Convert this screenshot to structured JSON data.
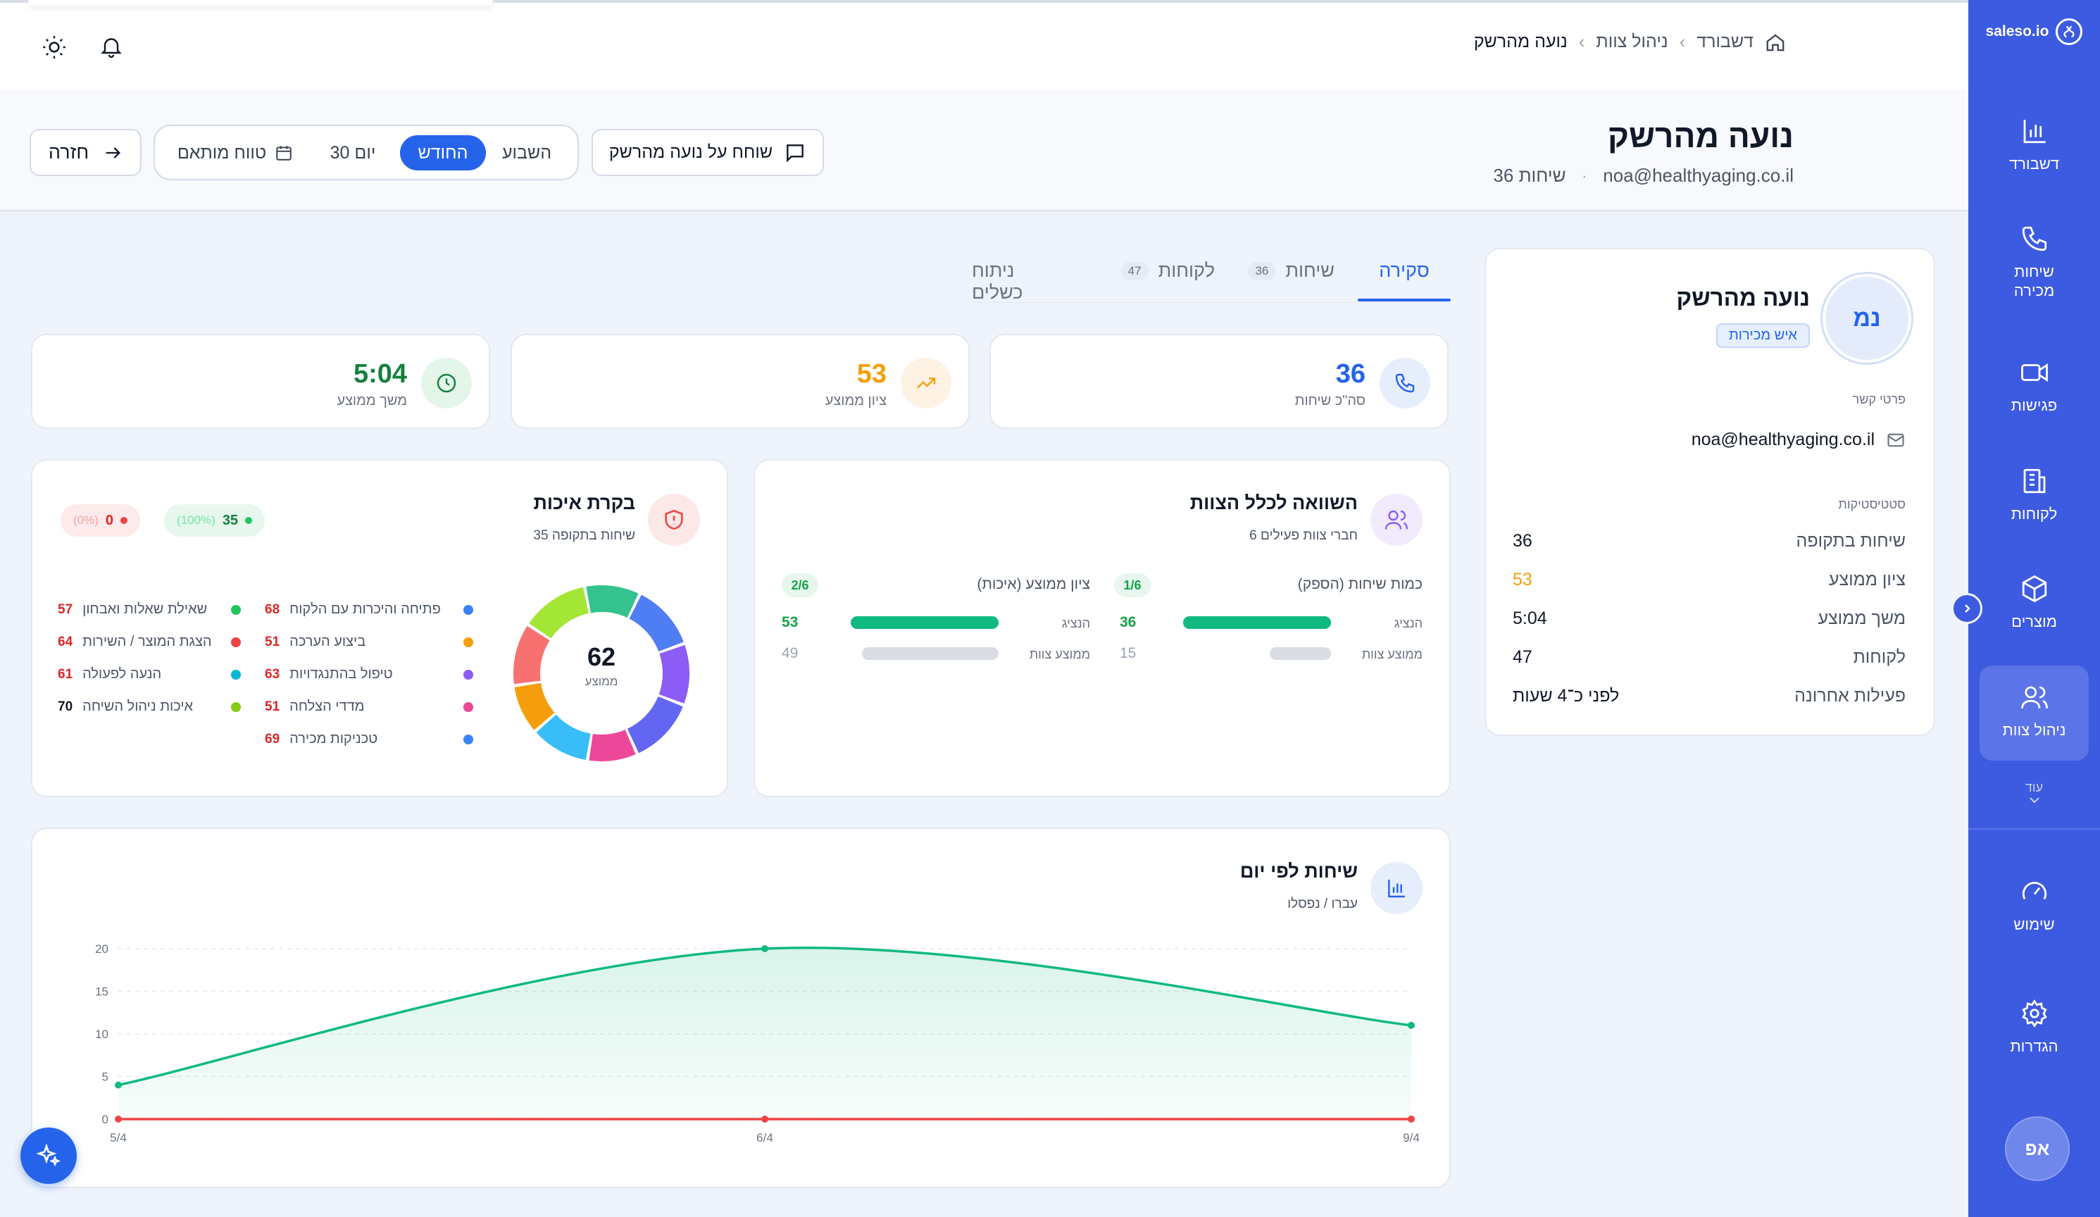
{
  "sidebar": {
    "logo": "saleso.io",
    "items": [
      {
        "label": "דשבורד",
        "icon": "bar-chart-icon"
      },
      {
        "label": "שיחות מכירה",
        "icon": "phone-icon"
      },
      {
        "label": "פגישות",
        "icon": "video-icon"
      },
      {
        "label": "לקוחות",
        "icon": "building-icon"
      },
      {
        "label": "מוצרים",
        "icon": "box-icon"
      },
      {
        "label": "ניהול צוות",
        "icon": "users-icon"
      }
    ],
    "more_label": "עוד",
    "bottom_items": [
      {
        "label": "שימוש",
        "icon": "gauge-icon"
      },
      {
        "label": "הגדרות",
        "icon": "gear-icon"
      }
    ],
    "user_initials": "אפ"
  },
  "breadcrumb": [
    "דשבורד",
    "ניהול צוות",
    "נועה מהרשק"
  ],
  "header": {
    "name": "נועה מהרשק",
    "email": "noa@healthyaging.co.il",
    "calls_count": "36 שיחות",
    "chat_button": "שוחח על נועה מהרשק",
    "periods": [
      "השבוע",
      "החודש",
      "30 יום",
      "טווח מותאם"
    ],
    "active_period": "החודש",
    "back_button": "חזרה"
  },
  "profile": {
    "initials": "נמ",
    "name": "נועה מהרשק",
    "role": "איש מכירות",
    "contact_title": "פרטי קשר",
    "email": "noa@healthyaging.co.il",
    "stats_title": "סטטיסטיקות",
    "stats": [
      {
        "label": "שיחות בתקופה",
        "value": "36",
        "color": "#111827"
      },
      {
        "label": "ציון ממוצע",
        "value": "53",
        "color": "#f59e0b"
      },
      {
        "label": "משך ממוצע",
        "value": "5:04",
        "color": "#111827"
      },
      {
        "label": "לקוחות",
        "value": "47",
        "color": "#111827"
      },
      {
        "label": "פעילות אחרונה",
        "value": "לפני כ־4 שעות",
        "color": "#111827"
      }
    ]
  },
  "tabs": [
    {
      "label": "סקירה",
      "badge": ""
    },
    {
      "label": "שיחות",
      "badge": "36"
    },
    {
      "label": "לקוחות",
      "badge": "47"
    },
    {
      "label": "ניתוח כשלים",
      "badge": ""
    }
  ],
  "stat_cards": [
    {
      "value": "36",
      "label": "סה\"כ שיחות",
      "color": "#2563eb",
      "icon": "phone-icon"
    },
    {
      "value": "53",
      "label": "ציון ממוצע",
      "color": "#f59e0b",
      "icon": "trend-up-icon"
    },
    {
      "value": "5:04",
      "label": "משך ממוצע",
      "color": "#15803d",
      "icon": "clock-icon"
    }
  ],
  "team_compare": {
    "title": "השוואה לכלל הצוות",
    "subtitle": "6 חברי צוות פעילים",
    "groups": [
      {
        "title": "כמות שיחות (הספק)",
        "rank": "1/6",
        "rep_label": "הנציג",
        "rep_value": 36,
        "team_label": "ממוצע צוות",
        "team_value": 15
      },
      {
        "title": "ציון ממוצע (איכות)",
        "rank": "2/6",
        "rep_label": "הנציג",
        "rep_value": 53,
        "team_label": "ממוצע צוות",
        "team_value": 49
      }
    ]
  },
  "quality": {
    "title": "בקרת איכות",
    "subtitle": "35 שיחות בתקופה",
    "pass_count": "35",
    "pass_pct": "(100%)",
    "fail_count": "0",
    "fail_pct": "(0%)",
    "avg": "62",
    "avg_label": "ממוצע",
    "categories": [
      {
        "label": "פתיחה והיכרות עם הלקוח",
        "score": 68,
        "color": "#3b82f6"
      },
      {
        "label": "ביצוע הערכה",
        "score": 51,
        "color": "#f59e0b"
      },
      {
        "label": "טיפול בהתנגדויות",
        "score": 63,
        "color": "#8b5cf6"
      },
      {
        "label": "מדדי הצלחה",
        "score": 51,
        "color": "#ec4899"
      },
      {
        "label": "טכניקות מכירה",
        "score": 69,
        "color": "#3b82f6"
      },
      {
        "label": "שאילת שאלות ואבחון",
        "score": 57,
        "color": "#22c55e"
      },
      {
        "label": "הצגת המוצר / השירות",
        "score": 64,
        "color": "#ef4444"
      },
      {
        "label": "הנעה לפעולה",
        "score": 61,
        "color": "#06b6d4"
      },
      {
        "label": "איכות ניהול השיחה",
        "score": 70,
        "color": "#84cc16"
      }
    ]
  },
  "calls_chart": {
    "title": "שיחות לפי יום",
    "subtitle": "עברו / נפסלו"
  },
  "chart_data": {
    "type": "area",
    "x": [
      "5/4",
      "6/4",
      "9/4"
    ],
    "series": [
      {
        "name": "עברו",
        "values": [
          4,
          20,
          11
        ],
        "color": "#10b981"
      },
      {
        "name": "נפסלו",
        "values": [
          0,
          0,
          0
        ],
        "color": "#ef4444"
      }
    ],
    "yticks": [
      0,
      5,
      10,
      15,
      20
    ],
    "ylim": [
      0,
      20
    ],
    "grid": true
  }
}
